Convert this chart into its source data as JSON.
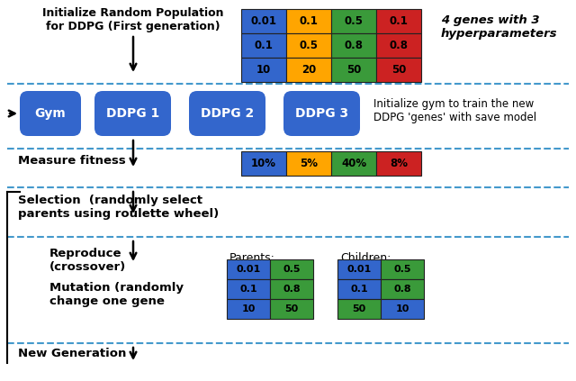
{
  "fig_width": 6.4,
  "fig_height": 4.23,
  "dpi": 100,
  "bg_color": "#ffffff",
  "blue": "#3366CC",
  "gene_colors": [
    "#3366CC",
    "#FFA500",
    "#3a9a3a",
    "#CC2222"
  ],
  "gene_col1": [
    "0.01",
    "0.1",
    "10"
  ],
  "gene_col2": [
    "0.1",
    "0.5",
    "20"
  ],
  "gene_col3": [
    "0.5",
    "0.8",
    "50"
  ],
  "gene_col4": [
    "0.1",
    "0.8",
    "50"
  ],
  "fitness_labels": [
    "10%",
    "5%",
    "40%",
    "8%"
  ],
  "fitness_colors": [
    "#3366CC",
    "#FFA500",
    "#3a9a3a",
    "#CC2222"
  ],
  "parent_col1_color": "#3366CC",
  "parent_col2_color": "#3a9a3a",
  "parent_col1": [
    "0.01",
    "0.1",
    "10"
  ],
  "parent_col2": [
    "0.5",
    "0.8",
    "50"
  ],
  "child_col1_color": "#3366CC",
  "child_col2_color": "#3a9a3a",
  "child_col1_top": [
    "0.01",
    "0.1"
  ],
  "child_col2_top": [
    "0.5",
    "0.8"
  ],
  "child_col1_bot_color": "#3a9a3a",
  "child_col2_bot_color": "#3366CC",
  "child_col1_bot": "50",
  "child_col2_bot": "10",
  "dash_color": "#4499CC",
  "arrow_color": "black"
}
